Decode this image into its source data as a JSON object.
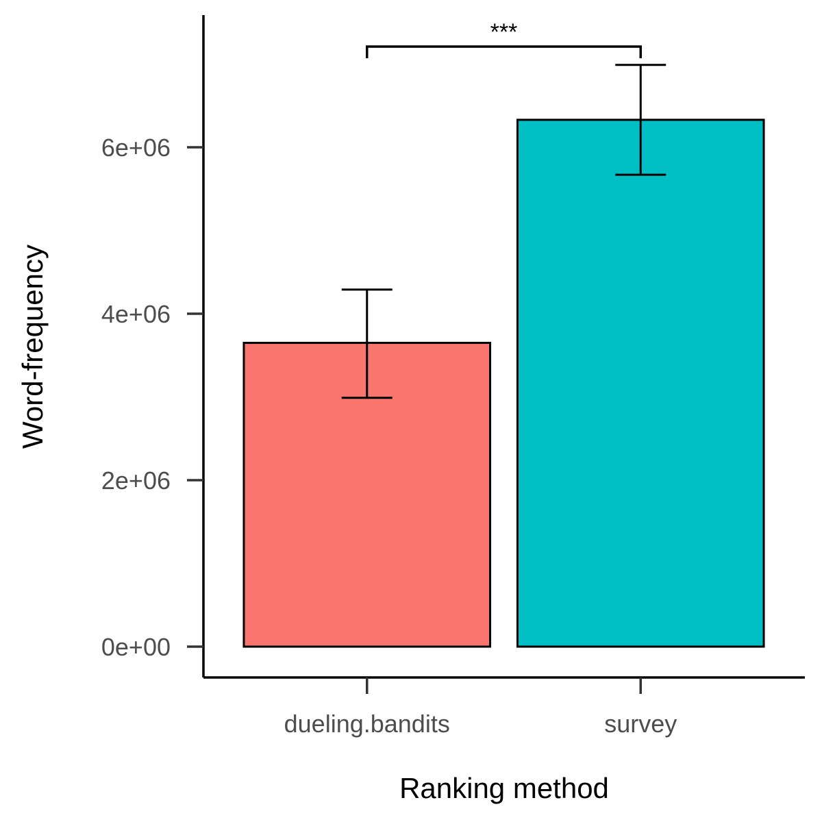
{
  "chart_data": {
    "type": "bar",
    "title": "",
    "xlabel": "Ranking method",
    "ylabel": "Word-frequency",
    "categories": [
      "dueling.bandits",
      "survey"
    ],
    "values": [
      3650000,
      6330000
    ],
    "error_low": [
      2990000,
      5670000
    ],
    "error_high": [
      4290000,
      6990000
    ],
    "colors": [
      "#F8766D",
      "#00BFC4"
    ],
    "yticks": [
      0,
      2000000,
      4000000,
      6000000
    ],
    "ytick_labels": [
      "0e+00",
      "2e+06",
      "4e+06",
      "6e+06"
    ],
    "ylim": [
      -350000,
      7500000
    ],
    "grid": false,
    "legend": "none",
    "significance": {
      "label": "***",
      "from": "dueling.bandits",
      "to": "survey",
      "y": 7200000
    }
  }
}
